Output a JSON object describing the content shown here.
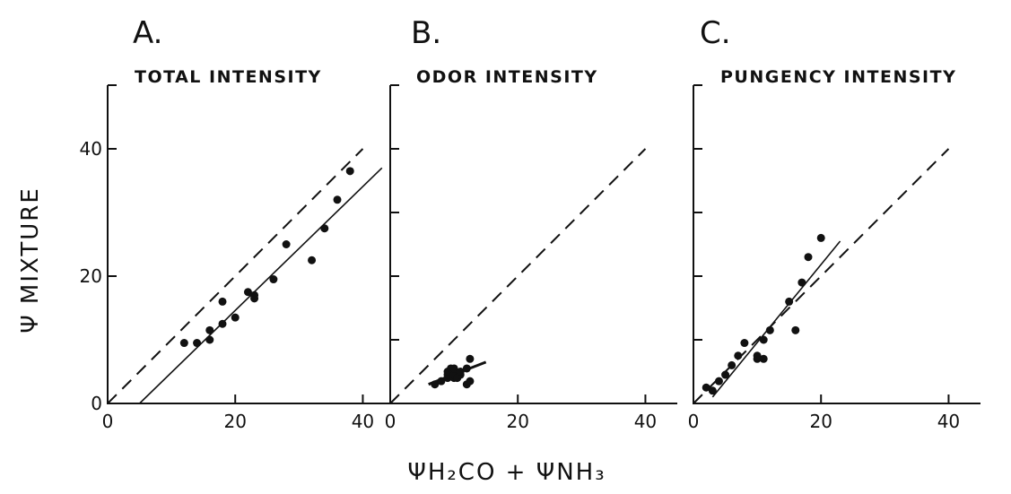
{
  "figure": {
    "y_axis_title": "Ψ MIXTURE",
    "x_axis_title": "ΨH₂CO + ΨNH₃"
  },
  "chart_data": [
    {
      "type": "scatter",
      "letter": "A.",
      "title": "TOTAL INTENSITY",
      "xlim": [
        0,
        45
      ],
      "ylim": [
        0,
        50
      ],
      "x_ticks": [
        0,
        20,
        40
      ],
      "y_ticks": [
        0,
        20,
        40
      ],
      "x_tick_labels": [
        "0",
        "20",
        "40"
      ],
      "y_tick_labels": [
        "0",
        "20",
        "40"
      ],
      "identity_line": {
        "x": [
          0,
          40
        ],
        "y": [
          0,
          40
        ]
      },
      "fit_line": {
        "x": [
          5,
          43
        ],
        "y": [
          0,
          37
        ]
      },
      "points": {
        "x": [
          12,
          14,
          16,
          16,
          18,
          18,
          20,
          22,
          23,
          23,
          26,
          28,
          32,
          34,
          36,
          38
        ],
        "y": [
          9.5,
          9.5,
          10,
          11.5,
          12.5,
          16,
          13.5,
          17.5,
          16.5,
          17,
          19.5,
          25,
          22.5,
          27.5,
          32,
          36.5
        ]
      }
    },
    {
      "type": "scatter",
      "letter": "B.",
      "title": "ODOR INTENSITY",
      "xlim": [
        0,
        45
      ],
      "ylim": [
        0,
        50
      ],
      "x_ticks": [
        0,
        20,
        40
      ],
      "y_ticks": [
        0,
        10,
        20,
        30,
        40
      ],
      "x_tick_labels": [
        "0",
        "20",
        "40"
      ],
      "y_tick_labels": [],
      "identity_line": {
        "x": [
          0,
          40
        ],
        "y": [
          0,
          40
        ]
      },
      "fit_line": {
        "x": [
          6,
          15
        ],
        "y": [
          3,
          6.5
        ]
      },
      "points": {
        "x": [
          7,
          8,
          9,
          9,
          9,
          9.5,
          10,
          10,
          10,
          10.5,
          11,
          11,
          12,
          12,
          12.5,
          12.5
        ],
        "y": [
          3,
          3.5,
          4,
          4.5,
          5,
          5.5,
          4,
          4.5,
          5.5,
          4,
          4.5,
          5,
          3,
          5.5,
          3.5,
          7
        ]
      }
    },
    {
      "type": "scatter",
      "letter": "C.",
      "title": "PUNGENCY INTENSITY",
      "xlim": [
        0,
        45
      ],
      "ylim": [
        0,
        50
      ],
      "x_ticks": [
        0,
        20,
        40
      ],
      "y_ticks": [
        0,
        10,
        20,
        30,
        40
      ],
      "x_tick_labels": [
        "0",
        "20",
        "40"
      ],
      "y_tick_labels": [],
      "identity_line": {
        "x": [
          0,
          40
        ],
        "y": [
          0,
          40
        ]
      },
      "fit_line": {
        "x": [
          3,
          23
        ],
        "y": [
          1,
          25.5
        ]
      },
      "points": {
        "x": [
          2,
          3,
          4,
          5,
          6,
          7,
          8,
          10,
          10,
          11,
          11,
          12,
          15,
          16,
          17,
          18,
          20
        ],
        "y": [
          2.5,
          2,
          3.5,
          4.5,
          6,
          7.5,
          9.5,
          7,
          7.5,
          7,
          10,
          11.5,
          16,
          11.5,
          19,
          23,
          26
        ]
      }
    }
  ]
}
